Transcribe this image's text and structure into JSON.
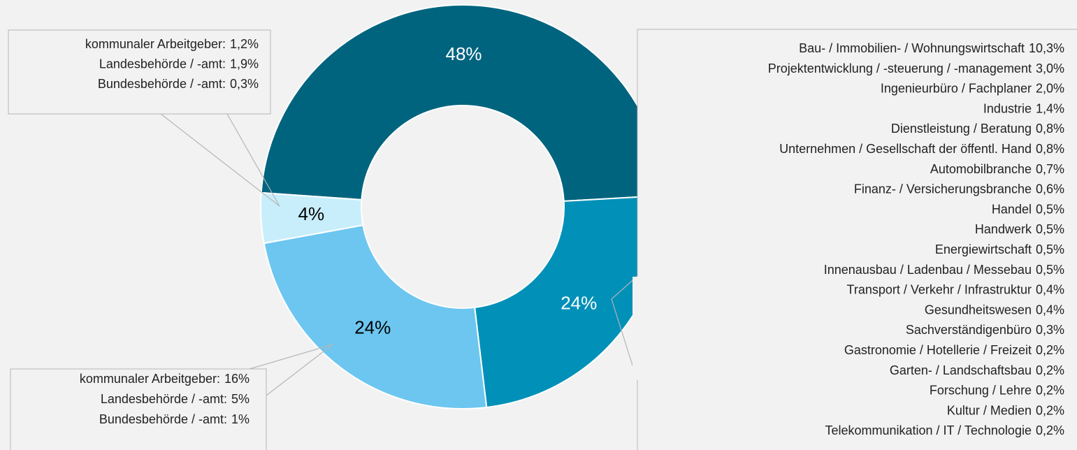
{
  "chart_data": {
    "type": "donut",
    "values": [
      48,
      24,
      24,
      4
    ],
    "value_labels": [
      "48%",
      "24%",
      "24%",
      "4%"
    ],
    "colors": [
      "#00647f",
      "#0090b8",
      "#6cc6f0",
      "#c8eefb"
    ],
    "label_colors": [
      "#ffffff",
      "#ffffff",
      "#000000",
      "#000000"
    ],
    "annotations": [
      {
        "rows": [
          {
            "label": "kommunaler Arbeitgeber:",
            "value": "1,2%"
          },
          {
            "label": "Landesbehörde / -amt:",
            "value": "1,9%"
          },
          {
            "label": "Bundesbehörde / -amt:",
            "value": "0,3%"
          }
        ]
      },
      {
        "rows": [
          {
            "label": "kommunaler Arbeitgeber:",
            "value": "16%"
          },
          {
            "label": "Landesbehörde / -amt:",
            "value": "5%"
          },
          {
            "label": "Bundesbehörde / -amt:",
            "value": "1%"
          }
        ]
      },
      {
        "rows": [
          {
            "label": "Bau- / Immobilien- / Wohnungswirtschaft",
            "value": "10,3%"
          },
          {
            "label": "Projektentwicklung / -steuerung / -management",
            "value": "3,0%"
          },
          {
            "label": "Ingenieurbüro / Fachplaner",
            "value": "2,0%"
          },
          {
            "label": "Industrie",
            "value": "1,4%"
          },
          {
            "label": "Dienstleistung / Beratung",
            "value": "0,8%"
          },
          {
            "label": "Unternehmen / Gesellschaft der öffentl. Hand",
            "value": "0,8%"
          },
          {
            "label": "Automobilbranche",
            "value": "0,7%"
          },
          {
            "label": "Finanz- / Versicherungsbranche",
            "value": "0,6%"
          },
          {
            "label": "Handel",
            "value": "0,5%"
          },
          {
            "label": "Handwerk",
            "value": "0,5%"
          },
          {
            "label": "Energiewirtschaft",
            "value": "0,5%"
          },
          {
            "label": "Innenausbau / Ladenbau / Messebau",
            "value": "0,5%"
          },
          {
            "label": "Transport / Verkehr / Infrastruktur",
            "value": "0,4%"
          },
          {
            "label": "Gesundheitswesen",
            "value": "0,4%"
          },
          {
            "label": "Sachverständigenbüro",
            "value": "0,3%"
          },
          {
            "label": "Gastronomie / Hotellerie / Freizeit",
            "value": "0,2%"
          },
          {
            "label": "Garten- / Landschaftsbau",
            "value": "0,2%"
          },
          {
            "label": "Forschung / Lehre",
            "value": "0,2%"
          },
          {
            "label": "Kultur / Medien",
            "value": "0,2%"
          },
          {
            "label": "Telekommunikation / IT / Technologie",
            "value": "0,2%"
          }
        ]
      }
    ]
  }
}
